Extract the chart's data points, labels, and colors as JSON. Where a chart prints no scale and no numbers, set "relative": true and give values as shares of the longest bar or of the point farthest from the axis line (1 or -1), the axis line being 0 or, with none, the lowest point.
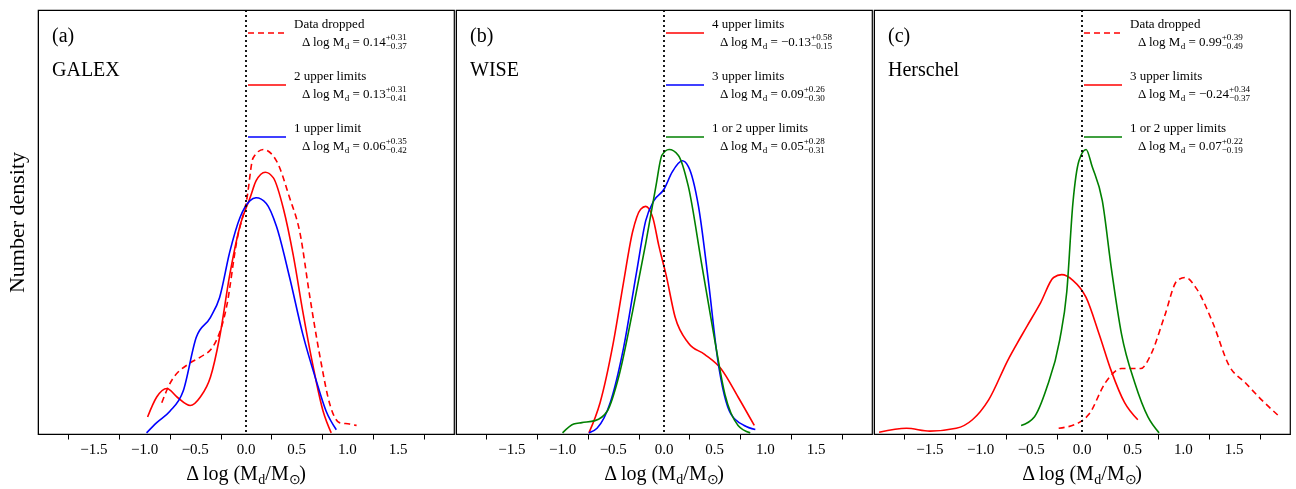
{
  "chart_data": [
    {
      "type": "line",
      "title": "(a)",
      "subtitle": "GALEX",
      "xlabel": "Δ log (M$_{d}$/M$_{⊙}$)",
      "ylabel": "Number density",
      "relative": true,
      "tick_labels": "x",
      "grid": false,
      "legend": "top right",
      "xlim": [
        -2.05,
        2.05
      ],
      "xticks": [
        {
          "value": -1.75,
          "label": null
        },
        {
          "value": -1.5,
          "label": "−1.5"
        },
        {
          "value": -1.25,
          "label": null
        },
        {
          "value": -1.0,
          "label": "−1.0"
        },
        {
          "value": -0.75,
          "label": null
        },
        {
          "value": -0.5,
          "label": "−0.5"
        },
        {
          "value": -0.25,
          "label": null
        },
        {
          "value": 0.0,
          "label": "0.0"
        },
        {
          "value": 0.25,
          "label": null
        },
        {
          "value": 0.5,
          "label": "0.5"
        },
        {
          "value": 0.75,
          "label": null
        },
        {
          "value": 1.0,
          "label": "1.0"
        },
        {
          "value": 1.25,
          "label": null
        },
        {
          "value": 1.5,
          "label": "1.5"
        },
        {
          "value": 1.75,
          "label": null
        }
      ],
      "ref_lines": [
        {
          "axis": "x",
          "value": 0,
          "color": "#000000",
          "line_style": "dotted"
        }
      ],
      "series": [
        {
          "name": "Data dropped\nΔ log M$_{d}$ = 0.14$^{+0.31}$$_{−0.37}$",
          "color": "#ff0000",
          "line_style": "dashed",
          "x": [
            -0.83,
            -0.76,
            -0.55,
            -0.45,
            -0.32,
            -0.19,
            -0.09,
            0.01,
            0.07,
            0.17,
            0.3,
            0.43,
            0.53,
            0.63,
            0.73,
            0.83,
            0.92,
            1.02,
            1.09
          ],
          "values": [
            0.11,
            0.17,
            0.25,
            0.27,
            0.31,
            0.45,
            0.68,
            0.83,
            0.97,
            1.0,
            0.96,
            0.83,
            0.71,
            0.48,
            0.27,
            0.1,
            0.04,
            0.035,
            0.03
          ]
        },
        {
          "name": "2 upper limits\nΔ log M$_{d}$ = 0.13$^{+0.31}$$_{−0.41}$",
          "color": "#ff0000",
          "line_style": "solid",
          "x": [
            -0.97,
            -0.88,
            -0.78,
            -0.68,
            -0.55,
            -0.45,
            -0.35,
            -0.26,
            -0.16,
            -0.06,
            0.04,
            0.1,
            0.19,
            0.27,
            0.37,
            0.47,
            0.56,
            0.66,
            0.76,
            0.84
          ],
          "values": [
            0.06,
            0.13,
            0.16,
            0.13,
            0.1,
            0.13,
            0.2,
            0.34,
            0.56,
            0.73,
            0.83,
            0.89,
            0.92,
            0.9,
            0.79,
            0.62,
            0.43,
            0.24,
            0.08,
            0.004
          ]
        },
        {
          "name": "1 upper limit\nΔ log M$_{d}$ = 0.06$^{+0.35}$$_{−0.42}$",
          "color": "#0000ff",
          "line_style": "solid",
          "x": [
            -0.98,
            -0.88,
            -0.75,
            -0.62,
            -0.49,
            -0.35,
            -0.26,
            -0.16,
            -0.06,
            0.04,
            0.1,
            0.2,
            0.3,
            0.43,
            0.56,
            0.69,
            0.79,
            0.89
          ],
          "values": [
            0.004,
            0.04,
            0.08,
            0.15,
            0.34,
            0.41,
            0.48,
            0.64,
            0.76,
            0.82,
            0.83,
            0.81,
            0.73,
            0.55,
            0.35,
            0.19,
            0.08,
            0.015
          ]
        }
      ]
    },
    {
      "type": "line",
      "title": "(b)",
      "subtitle": "WISE",
      "xlabel": "Δ log (M$_{d}$/M$_{⊙}$)",
      "relative": true,
      "tick_labels": "x",
      "grid": false,
      "legend": "top right",
      "xlim": [
        -2.05,
        2.05
      ],
      "xticks": [
        {
          "value": -1.75,
          "label": null
        },
        {
          "value": -1.5,
          "label": "−1.5"
        },
        {
          "value": -1.25,
          "label": null
        },
        {
          "value": -1.0,
          "label": "−1.0"
        },
        {
          "value": -0.75,
          "label": null
        },
        {
          "value": -0.5,
          "label": "−0.5"
        },
        {
          "value": -0.25,
          "label": null
        },
        {
          "value": 0.0,
          "label": "0.0"
        },
        {
          "value": 0.25,
          "label": null
        },
        {
          "value": 0.5,
          "label": "0.5"
        },
        {
          "value": 0.75,
          "label": null
        },
        {
          "value": 1.0,
          "label": "1.0"
        },
        {
          "value": 1.25,
          "label": null
        },
        {
          "value": 1.5,
          "label": "1.5"
        },
        {
          "value": 1.75,
          "label": null
        }
      ],
      "ref_lines": [
        {
          "axis": "x",
          "value": 0,
          "color": "#000000",
          "line_style": "dotted"
        }
      ],
      "series": [
        {
          "name": "4 upper limits\nΔ log M$_{d}$ = −0.13$^{+0.58}$$_{−0.15}$",
          "color": "#ff0000",
          "line_style": "solid",
          "x": [
            -0.74,
            -0.63,
            -0.5,
            -0.4,
            -0.31,
            -0.23,
            -0.18,
            -0.11,
            -0.05,
            0.02,
            0.11,
            0.24,
            0.4,
            0.56,
            0.73,
            0.89
          ],
          "values": [
            0.004,
            0.11,
            0.32,
            0.53,
            0.71,
            0.79,
            0.8,
            0.76,
            0.66,
            0.56,
            0.41,
            0.32,
            0.28,
            0.23,
            0.13,
            0.03
          ]
        },
        {
          "name": "3 upper limits\nΔ log M$_{d}$ = 0.09$^{+0.26}$$_{−0.30}$",
          "color": "#0000ff",
          "line_style": "solid",
          "x": [
            -0.74,
            -0.66,
            -0.53,
            -0.4,
            -0.27,
            -0.18,
            -0.1,
            0.0,
            0.08,
            0.18,
            0.24,
            0.34,
            0.44,
            0.53,
            0.66,
            0.79,
            0.9
          ],
          "values": [
            0.004,
            0.02,
            0.11,
            0.3,
            0.57,
            0.75,
            0.82,
            0.86,
            0.92,
            0.96,
            0.94,
            0.8,
            0.53,
            0.26,
            0.07,
            0.03,
            0.016
          ]
        },
        {
          "name": "1 or 2 upper limits\nΔ log M$_{d}$ = 0.05$^{+0.28}$$_{−0.31}$",
          "color": "#008000",
          "line_style": "solid",
          "x": [
            -1.0,
            -0.89,
            -0.81,
            -0.68,
            -0.56,
            -0.44,
            -0.31,
            -0.18,
            -0.08,
            -0.02,
            0.05,
            0.14,
            0.24,
            0.37,
            0.5,
            0.6,
            0.73,
            0.85
          ],
          "values": [
            0.004,
            0.035,
            0.04,
            0.047,
            0.08,
            0.21,
            0.43,
            0.67,
            0.87,
            0.98,
            1.0,
            0.98,
            0.87,
            0.6,
            0.33,
            0.14,
            0.03,
            0.004
          ]
        }
      ]
    },
    {
      "type": "line",
      "title": "(c)",
      "subtitle": "Herschel",
      "xlabel": "Δ log (M$_{d}$/M$_{⊙}$)",
      "relative": true,
      "tick_labels": "x",
      "grid": false,
      "legend": "top right",
      "xlim": [
        -2.05,
        2.05
      ],
      "xticks": [
        {
          "value": -1.75,
          "label": null
        },
        {
          "value": -1.5,
          "label": "−1.5"
        },
        {
          "value": -1.25,
          "label": null
        },
        {
          "value": -1.0,
          "label": "−1.0"
        },
        {
          "value": -0.75,
          "label": null
        },
        {
          "value": -0.5,
          "label": "−0.5"
        },
        {
          "value": -0.25,
          "label": null
        },
        {
          "value": 0.0,
          "label": "0.0"
        },
        {
          "value": 0.25,
          "label": null
        },
        {
          "value": 0.5,
          "label": "0.5"
        },
        {
          "value": 0.75,
          "label": null
        },
        {
          "value": 1.0,
          "label": "1.0"
        },
        {
          "value": 1.25,
          "label": null
        },
        {
          "value": 1.5,
          "label": "1.5"
        },
        {
          "value": 1.75,
          "label": null
        }
      ],
      "ref_lines": [
        {
          "axis": "x",
          "value": 0,
          "color": "#000000",
          "line_style": "dotted"
        }
      ],
      "series": [
        {
          "name": "Data dropped\nΔ log M$_{d}$ = 0.99$^{+0.39}$$_{−0.49}$",
          "color": "#ff0000",
          "line_style": "dashed",
          "x": [
            -0.23,
            -0.03,
            0.07,
            0.23,
            0.39,
            0.58,
            0.68,
            0.81,
            0.94,
            1.02,
            1.13,
            1.29,
            1.45,
            1.61,
            1.77,
            1.95
          ],
          "values": [
            0.02,
            0.04,
            0.07,
            0.18,
            0.23,
            0.23,
            0.28,
            0.41,
            0.54,
            0.55,
            0.51,
            0.39,
            0.24,
            0.18,
            0.12,
            0.06
          ]
        },
        {
          "name": "3 upper limits\nΔ log M$_{d}$ = −0.24$^{+0.34}$$_{−0.37}$",
          "color": "#ff0000",
          "line_style": "solid",
          "x": [
            -2.0,
            -1.73,
            -1.5,
            -1.24,
            -1.08,
            -0.92,
            -0.73,
            -0.54,
            -0.41,
            -0.28,
            -0.2,
            -0.09,
            0.04,
            0.17,
            0.29,
            0.42,
            0.55
          ],
          "values": [
            0.006,
            0.02,
            0.01,
            0.02,
            0.05,
            0.12,
            0.26,
            0.38,
            0.46,
            0.55,
            0.56,
            0.54,
            0.48,
            0.35,
            0.22,
            0.11,
            0.05
          ]
        },
        {
          "name": "1 or 2 upper limits\nΔ log M$_{d}$ = 0.07$^{+0.22}$$_{−0.19}$",
          "color": "#008000",
          "line_style": "solid",
          "x": [
            -0.6,
            -0.47,
            -0.35,
            -0.22,
            -0.15,
            -0.09,
            -0.03,
            0.04,
            0.1,
            0.2,
            0.29,
            0.39,
            0.52,
            0.65,
            0.76
          ],
          "values": [
            0.03,
            0.06,
            0.16,
            0.33,
            0.5,
            0.81,
            0.96,
            1.0,
            0.94,
            0.82,
            0.58,
            0.35,
            0.18,
            0.06,
            0.004
          ]
        }
      ]
    }
  ]
}
